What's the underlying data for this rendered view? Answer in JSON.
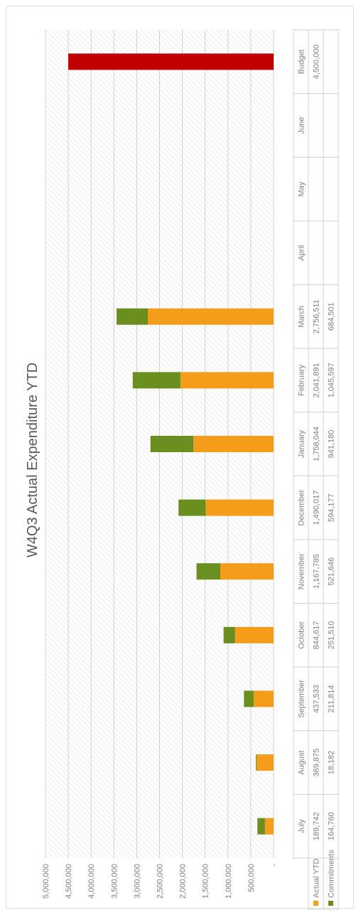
{
  "chart_data": {
    "type": "bar",
    "orientation": "horizontal-stacked",
    "title": "W4Q3 Actual Expenditure YTD",
    "categories": [
      "July",
      "August",
      "September",
      "October",
      "November",
      "December",
      "January",
      "February",
      "March",
      "April",
      "May",
      "June",
      "Budget"
    ],
    "series": [
      {
        "name": "Actual YTD",
        "color": "#f59c1a",
        "values": [
          189742,
          369875,
          437533,
          844617,
          1167785,
          1490017,
          1758044,
          2041891,
          2756511,
          null,
          null,
          null,
          null
        ],
        "labels": [
          "189,742",
          "369,875",
          "437,533",
          "844,617",
          "1,167,785",
          "1,490,017",
          "1,758,044",
          "2,041,891",
          "2,756,511",
          "",
          "",
          "",
          ""
        ]
      },
      {
        "name": "Commitments",
        "color": "#6a8f1e",
        "values": [
          164760,
          18182,
          211814,
          251510,
          521646,
          594177,
          941180,
          1045597,
          684501,
          null,
          null,
          null,
          null
        ],
        "labels": [
          "164,760",
          "18,182",
          "211,814",
          "251,510",
          "521,646",
          "594,177",
          "941,180",
          "1,045,597",
          "684,501",
          "",
          "",
          "",
          ""
        ]
      },
      {
        "name": "Budget",
        "color": "#c00000",
        "values": [
          null,
          null,
          null,
          null,
          null,
          null,
          null,
          null,
          null,
          null,
          null,
          null,
          4500000
        ],
        "labels": [
          "",
          "",
          "",
          "",
          "",
          "",
          "",
          "",
          "",
          "",
          "",
          "",
          "4,500,000"
        ]
      }
    ],
    "xlim": [
      0,
      5000000
    ],
    "xticks": [
      0,
      500000,
      1000000,
      1500000,
      2000000,
      2500000,
      3000000,
      3500000,
      4000000,
      4500000,
      5000000
    ],
    "xtick_labels": [
      "-",
      "500,000",
      "1,000,000",
      "1,500,000",
      "2,000,000",
      "2,500,000",
      "3,000,000",
      "3,500,000",
      "4,000,000",
      "4,500,000",
      "5,000,000"
    ],
    "grid": true,
    "legend": "data-table",
    "table_row_labels": [
      "Actual YTD",
      "Commitments"
    ]
  }
}
